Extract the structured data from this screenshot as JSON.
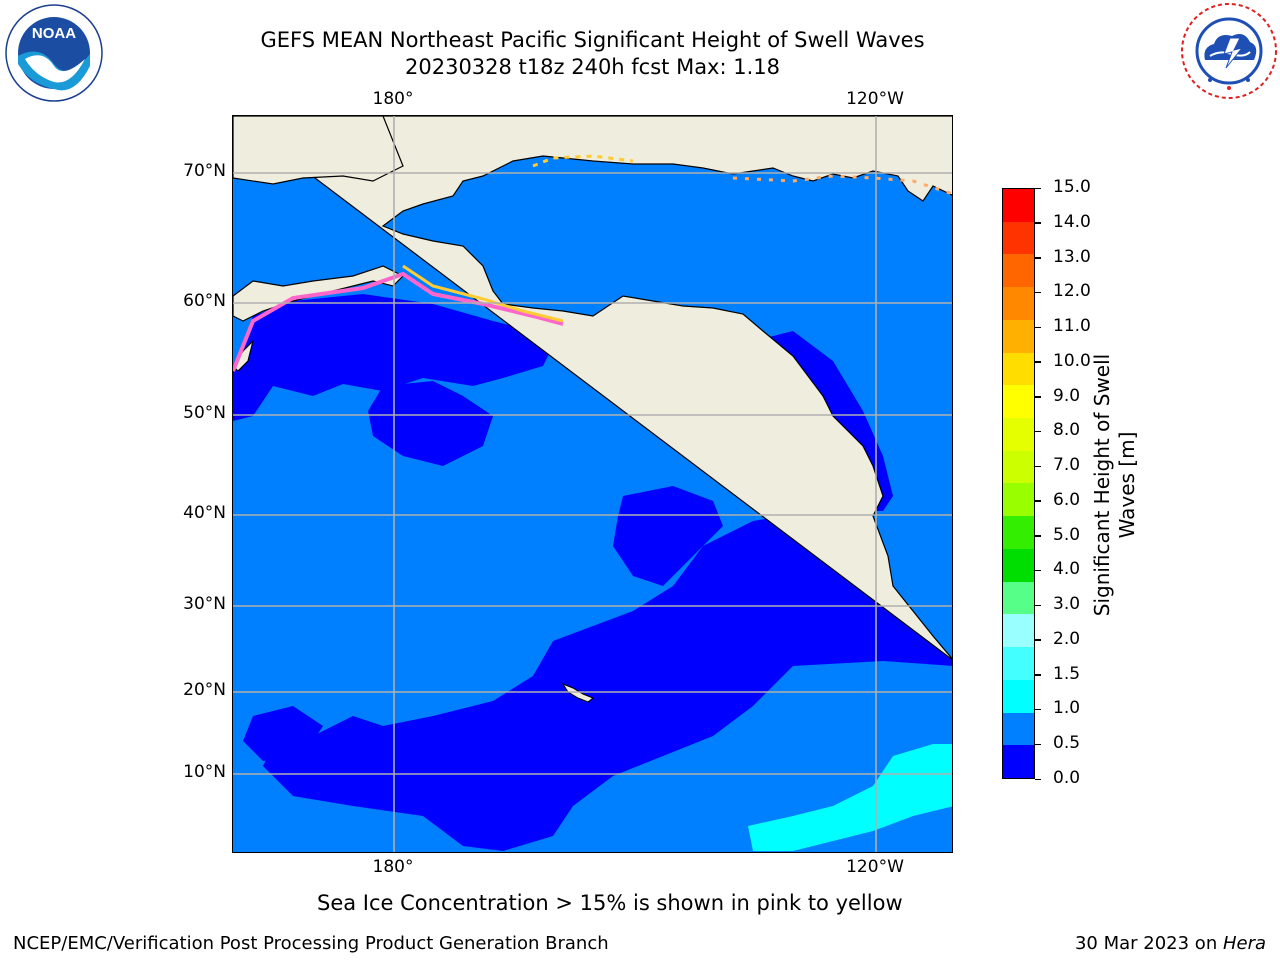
{
  "title": {
    "line1": "GEFS MEAN Northeast Pacific Significant Height of Swell Waves",
    "line2": "20230328 t18z 240h fcst   Max: 1.18"
  },
  "logos": {
    "left_icon": "noaa-logo",
    "right_icon": "nws-logo",
    "noaa_text": "NOAA",
    "noaa_ring_text": "NATIONAL OCEANIC AND ATMOSPHERIC ADMINISTRATION",
    "noaa_ring_bottom": "U.S. DEPARTMENT OF COMMERCE",
    "nws_ring_text": "NATIONAL WEATHER SERVICE"
  },
  "map": {
    "lon_labels": [
      "180°",
      "120°W"
    ],
    "lat_labels": [
      "70°N",
      "60°N",
      "50°N",
      "40°N",
      "30°N",
      "20°N",
      "10°N"
    ],
    "colors": {
      "land": "#efedde",
      "ocean_low": "#0000ff",
      "ocean_mid": "#0080ff",
      "ocean_high": "#00ffff",
      "ice_pink": "#ff66cc",
      "ice_yellow": "#ffcc33",
      "grid": "#b0b0b0"
    }
  },
  "colorbar": {
    "title_line1": "Significant Height of Swell",
    "title_line2": "Waves [m]",
    "ticks": [
      "15.0",
      "14.0",
      "13.0",
      "12.0",
      "11.0",
      "10.0",
      "9.0",
      "8.0",
      "7.0",
      "6.0",
      "5.0",
      "4.0",
      "3.0",
      "2.0",
      "1.5",
      "1.0",
      "0.5",
      "0.0"
    ],
    "colors_top_to_bottom": [
      "#ff0000",
      "#ff3300",
      "#ff6600",
      "#ff8800",
      "#ffb000",
      "#ffdd00",
      "#ffff00",
      "#e6ff00",
      "#ccff00",
      "#99ff00",
      "#33ee00",
      "#00dd00",
      "#55ff88",
      "#99ffff",
      "#44ffff",
      "#00ffff",
      "#0080ff",
      "#0000ff"
    ]
  },
  "note": "Sea Ice Concentration > 15% is shown in pink to yellow",
  "footer": {
    "left": "NCEP/EMC/Verification Post Processing Product Generation Branch",
    "right_prefix": "30 Mar 2023 on ",
    "right_machine": "Hera"
  }
}
